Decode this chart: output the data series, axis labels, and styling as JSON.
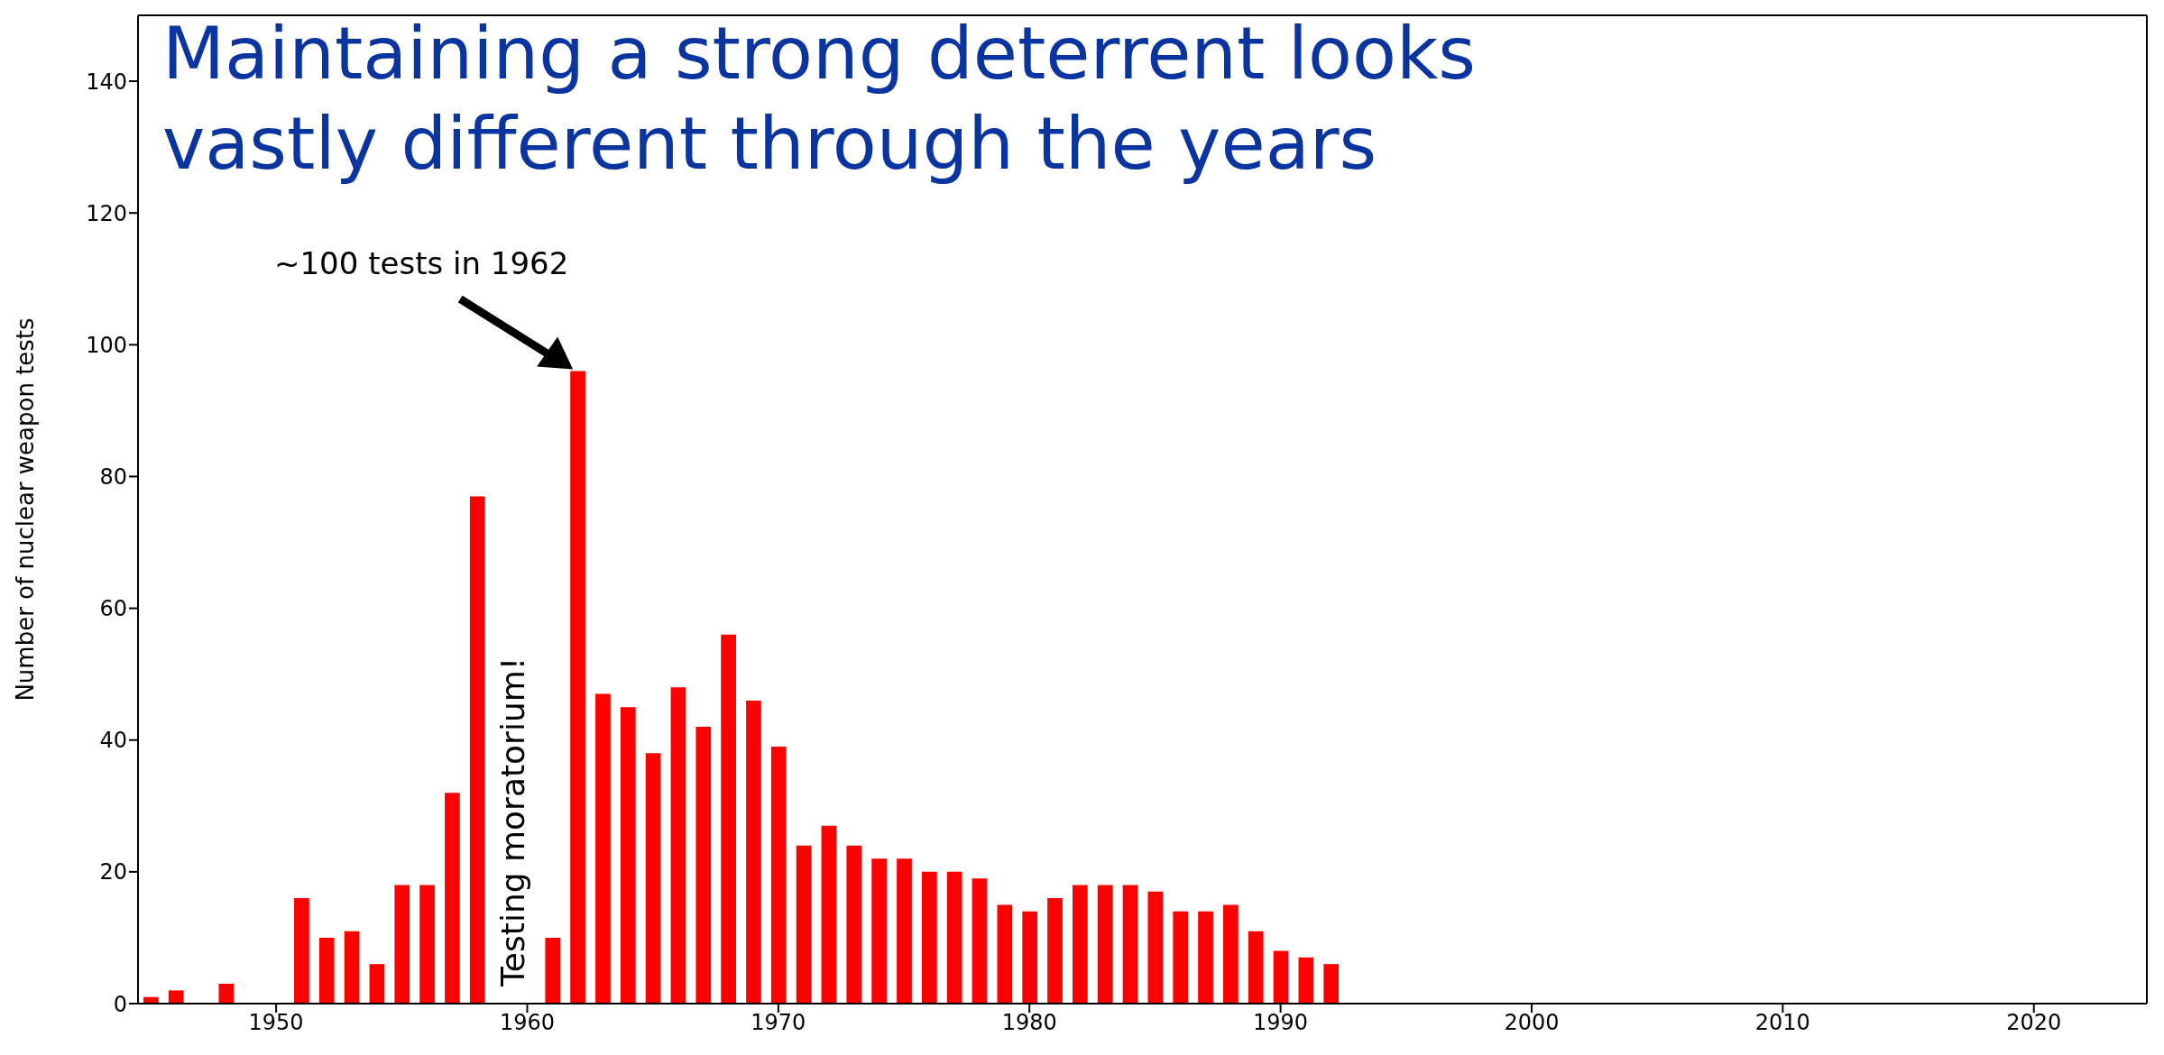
{
  "chart_data": {
    "type": "bar",
    "title": "Maintaining a strong deterrent looks vastly different through the years",
    "ylabel": "Number of nuclear weapon tests",
    "x": [
      1945,
      1946,
      1948,
      1951,
      1952,
      1953,
      1954,
      1955,
      1956,
      1957,
      1958,
      1961,
      1962,
      1963,
      1964,
      1965,
      1966,
      1967,
      1968,
      1969,
      1970,
      1971,
      1972,
      1973,
      1974,
      1975,
      1976,
      1977,
      1978,
      1979,
      1980,
      1981,
      1982,
      1983,
      1984,
      1985,
      1986,
      1987,
      1988,
      1989,
      1990,
      1991,
      1992
    ],
    "values": [
      1,
      2,
      3,
      16,
      10,
      11,
      6,
      18,
      18,
      32,
      77,
      10,
      96,
      47,
      45,
      38,
      48,
      42,
      56,
      46,
      39,
      24,
      27,
      24,
      22,
      22,
      20,
      20,
      19,
      15,
      14,
      16,
      18,
      18,
      18,
      17,
      14,
      14,
      15,
      11,
      8,
      7,
      6
    ],
    "color": "#ff0000",
    "xlim": [
      1944.5,
      2024.5
    ],
    "xticks": [
      1950,
      1960,
      1970,
      1980,
      1990,
      2000,
      2010,
      2020
    ],
    "ylim": [
      0,
      150
    ],
    "yticks": [
      0,
      20,
      40,
      60,
      80,
      100,
      120,
      140
    ],
    "annotations": [
      {
        "text": "~100 tests in 1962",
        "x": 1962,
        "y": 96
      },
      "Testing moratorium!"
    ]
  }
}
